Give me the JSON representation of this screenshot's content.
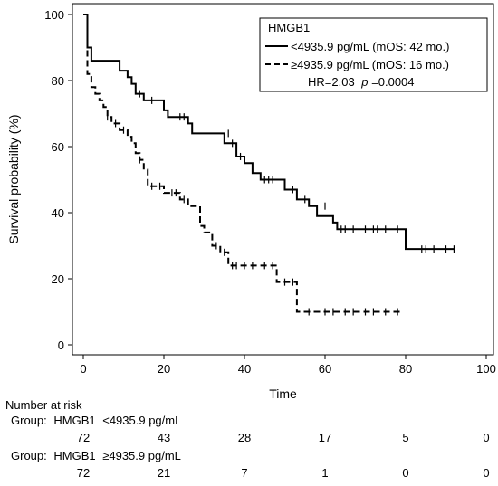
{
  "chart_data": {
    "type": "line",
    "title": "",
    "xlabel": "Time",
    "ylabel": "Survival probability (%)",
    "xlim": [
      0,
      100
    ],
    "ylim": [
      0,
      100
    ],
    "xticks": [
      0,
      20,
      40,
      60,
      80,
      100
    ],
    "yticks": [
      0,
      20,
      40,
      60,
      80,
      100
    ],
    "grid": false,
    "legend": {
      "position": "top-right",
      "title": "HMGB1",
      "annotation_prefix": "HR=2.03",
      "annotation_p_symbol": "p",
      "annotation_p_value": "=0.0004"
    },
    "series": [
      {
        "name": "<4935.9 pg/mL (mOS: 42 mo.)",
        "style": "solid",
        "color": "#000000",
        "points": [
          [
            0,
            100
          ],
          [
            1,
            100
          ],
          [
            1,
            96
          ],
          [
            1,
            90
          ],
          [
            2,
            90
          ],
          [
            2,
            86
          ],
          [
            9,
            86
          ],
          [
            9,
            83
          ],
          [
            11,
            83
          ],
          [
            11,
            81
          ],
          [
            12,
            81
          ],
          [
            12,
            79
          ],
          [
            13,
            79
          ],
          [
            13,
            76
          ],
          [
            15,
            76
          ],
          [
            15,
            74
          ],
          [
            20,
            74
          ],
          [
            20,
            71
          ],
          [
            21,
            71
          ],
          [
            21,
            69
          ],
          [
            26,
            69
          ],
          [
            26,
            67
          ],
          [
            27,
            67
          ],
          [
            27,
            64
          ],
          [
            35,
            64
          ],
          [
            35,
            61
          ],
          [
            38,
            61
          ],
          [
            38,
            57
          ],
          [
            40,
            57
          ],
          [
            40,
            55
          ],
          [
            42,
            55
          ],
          [
            42,
            52
          ],
          [
            44,
            52
          ],
          [
            44,
            50
          ],
          [
            50,
            50
          ],
          [
            50,
            47
          ],
          [
            53,
            47
          ],
          [
            53,
            44
          ],
          [
            56,
            44
          ],
          [
            56,
            42
          ],
          [
            58,
            42
          ],
          [
            58,
            39
          ],
          [
            62,
            39
          ],
          [
            62,
            37
          ],
          [
            63,
            37
          ],
          [
            63,
            35
          ],
          [
            80,
            35
          ],
          [
            80,
            29
          ],
          [
            92,
            29
          ]
        ],
        "censored": [
          [
            14,
            76
          ],
          [
            17,
            74
          ],
          [
            24,
            69
          ],
          [
            25,
            69
          ],
          [
            36,
            64
          ],
          [
            37,
            61
          ],
          [
            39,
            57
          ],
          [
            45,
            50
          ],
          [
            46,
            50
          ],
          [
            47,
            50
          ],
          [
            52,
            47
          ],
          [
            55,
            44
          ],
          [
            60,
            42
          ],
          [
            64,
            35
          ],
          [
            65,
            35
          ],
          [
            67,
            35
          ],
          [
            70,
            35
          ],
          [
            72,
            35
          ],
          [
            73,
            35
          ],
          [
            75,
            35
          ],
          [
            78,
            35
          ],
          [
            84,
            29
          ],
          [
            85,
            29
          ],
          [
            87,
            29
          ],
          [
            90,
            29
          ],
          [
            92,
            29
          ]
        ]
      },
      {
        "name": "≥4935.9 pg/mL (mOS: 16 mo.)",
        "style": "dashed",
        "color": "#000000",
        "points": [
          [
            0,
            100
          ],
          [
            1,
            100
          ],
          [
            1,
            90
          ],
          [
            1,
            86
          ],
          [
            1,
            82
          ],
          [
            2,
            82
          ],
          [
            2,
            78
          ],
          [
            3,
            78
          ],
          [
            3,
            76
          ],
          [
            4,
            76
          ],
          [
            4,
            74
          ],
          [
            5,
            74
          ],
          [
            5,
            72
          ],
          [
            6,
            72
          ],
          [
            6,
            69
          ],
          [
            7,
            69
          ],
          [
            7,
            67
          ],
          [
            9,
            67
          ],
          [
            9,
            65
          ],
          [
            11,
            65
          ],
          [
            11,
            63
          ],
          [
            12,
            63
          ],
          [
            12,
            61
          ],
          [
            13,
            61
          ],
          [
            13,
            58
          ],
          [
            14,
            58
          ],
          [
            14,
            56
          ],
          [
            15,
            56
          ],
          [
            15,
            53
          ],
          [
            16,
            53
          ],
          [
            16,
            48
          ],
          [
            20,
            48
          ],
          [
            20,
            46
          ],
          [
            24,
            46
          ],
          [
            24,
            44
          ],
          [
            26,
            44
          ],
          [
            26,
            42
          ],
          [
            29,
            42
          ],
          [
            29,
            36
          ],
          [
            30,
            36
          ],
          [
            30,
            34
          ],
          [
            32,
            34
          ],
          [
            32,
            30
          ],
          [
            34,
            30
          ],
          [
            34,
            28
          ],
          [
            36,
            28
          ],
          [
            36,
            24
          ],
          [
            48,
            24
          ],
          [
            48,
            19
          ],
          [
            53,
            19
          ],
          [
            53,
            10
          ],
          [
            79,
            10
          ]
        ],
        "censored": [
          [
            6,
            69
          ],
          [
            8,
            67
          ],
          [
            10,
            65
          ],
          [
            14,
            56
          ],
          [
            17,
            48
          ],
          [
            19,
            48
          ],
          [
            22,
            46
          ],
          [
            23,
            46
          ],
          [
            25,
            44
          ],
          [
            33,
            30
          ],
          [
            35,
            28
          ],
          [
            37,
            24
          ],
          [
            38,
            24
          ],
          [
            40,
            24
          ],
          [
            42,
            24
          ],
          [
            45,
            24
          ],
          [
            47,
            24
          ],
          [
            50,
            19
          ],
          [
            52,
            19
          ],
          [
            56,
            10
          ],
          [
            60,
            10
          ],
          [
            62,
            10
          ],
          [
            65,
            10
          ],
          [
            67,
            10
          ],
          [
            70,
            10
          ],
          [
            72,
            10
          ],
          [
            75,
            10
          ],
          [
            78,
            10
          ]
        ]
      }
    ],
    "number_at_risk": {
      "title": "Number at risk",
      "groups": [
        {
          "prefix": "Group:",
          "label_a": "HMGB1",
          "label_b": "<4935.9 pg/mL",
          "values": [
            72,
            43,
            28,
            17,
            5,
            0
          ]
        },
        {
          "prefix": "Group:",
          "label_a": "HMGB1",
          "label_b": "≥4935.9 pg/mL",
          "values": [
            72,
            21,
            7,
            1,
            0,
            0
          ]
        }
      ]
    }
  }
}
